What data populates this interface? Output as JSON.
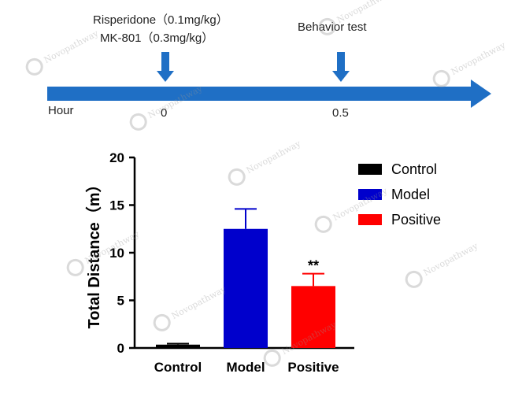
{
  "timeline": {
    "drug1": "Risperidone（0.1mg/kg）",
    "drug2": "MK-801（0.3mg/kg）",
    "test_label": "Behavior test",
    "axis_label": "Hour",
    "tick_0": "0",
    "tick_1": "0.5",
    "arrow_color": "#1f6fc5"
  },
  "watermark": "Novopathway",
  "chart_data": {
    "type": "bar",
    "ylabel": "Total Distance（m）",
    "xlabel": "",
    "ylim": [
      0,
      20
    ],
    "yticks": [
      "0",
      "5",
      "10",
      "15",
      "20"
    ],
    "categories": [
      "Control",
      "Model",
      "Positive"
    ],
    "values": [
      0.35,
      12.5,
      6.5
    ],
    "errors": [
      0.1,
      2.1,
      1.3
    ],
    "colors": [
      "#000000",
      "#0000cc",
      "#ff0000"
    ],
    "significance": [
      "",
      "",
      "**"
    ],
    "legend": [
      "Control",
      "Model",
      "Positive"
    ],
    "legend_position": "top-right"
  }
}
